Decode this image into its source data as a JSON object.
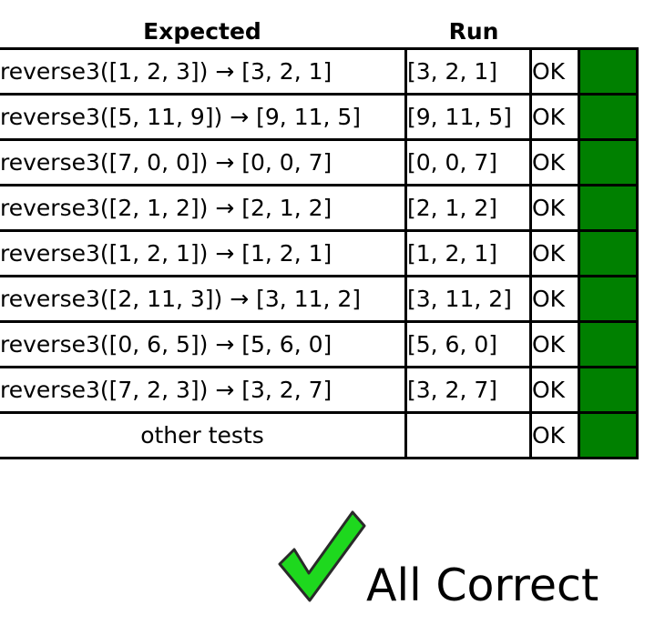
{
  "header": {
    "expected": "Expected",
    "run": "Run"
  },
  "rows": [
    {
      "expected": "reverse3([1, 2, 3]) → [3, 2, 1]",
      "run": "[3, 2, 1]",
      "status": "OK"
    },
    {
      "expected": "reverse3([5, 11, 9]) → [9, 11, 5]",
      "run": "[9, 11, 5]",
      "status": "OK"
    },
    {
      "expected": "reverse3([7, 0, 0]) → [0, 0, 7]",
      "run": "[0, 0, 7]",
      "status": "OK"
    },
    {
      "expected": "reverse3([2, 1, 2]) → [2, 1, 2]",
      "run": "[2, 1, 2]",
      "status": "OK"
    },
    {
      "expected": "reverse3([1, 2, 1]) → [1, 2, 1]",
      "run": "[1, 2, 1]",
      "status": "OK"
    },
    {
      "expected": "reverse3([2, 11, 3]) → [3, 11, 2]",
      "run": "[3, 11, 2]",
      "status": "OK"
    },
    {
      "expected": "reverse3([0, 6, 5]) → [5, 6, 0]",
      "run": "[5, 6, 0]",
      "status": "OK"
    },
    {
      "expected": "reverse3([7, 2, 3]) → [3, 2, 7]",
      "run": "[3, 2, 7]",
      "status": "OK"
    },
    {
      "expected": "other tests",
      "run": "",
      "status": "OK"
    }
  ],
  "colors": {
    "pass_bar": "#008000",
    "check_fill": "#1ed81e",
    "check_outline": "#2a2a2a"
  },
  "result": {
    "icon": "checkmark-icon",
    "text": "All Correct"
  }
}
